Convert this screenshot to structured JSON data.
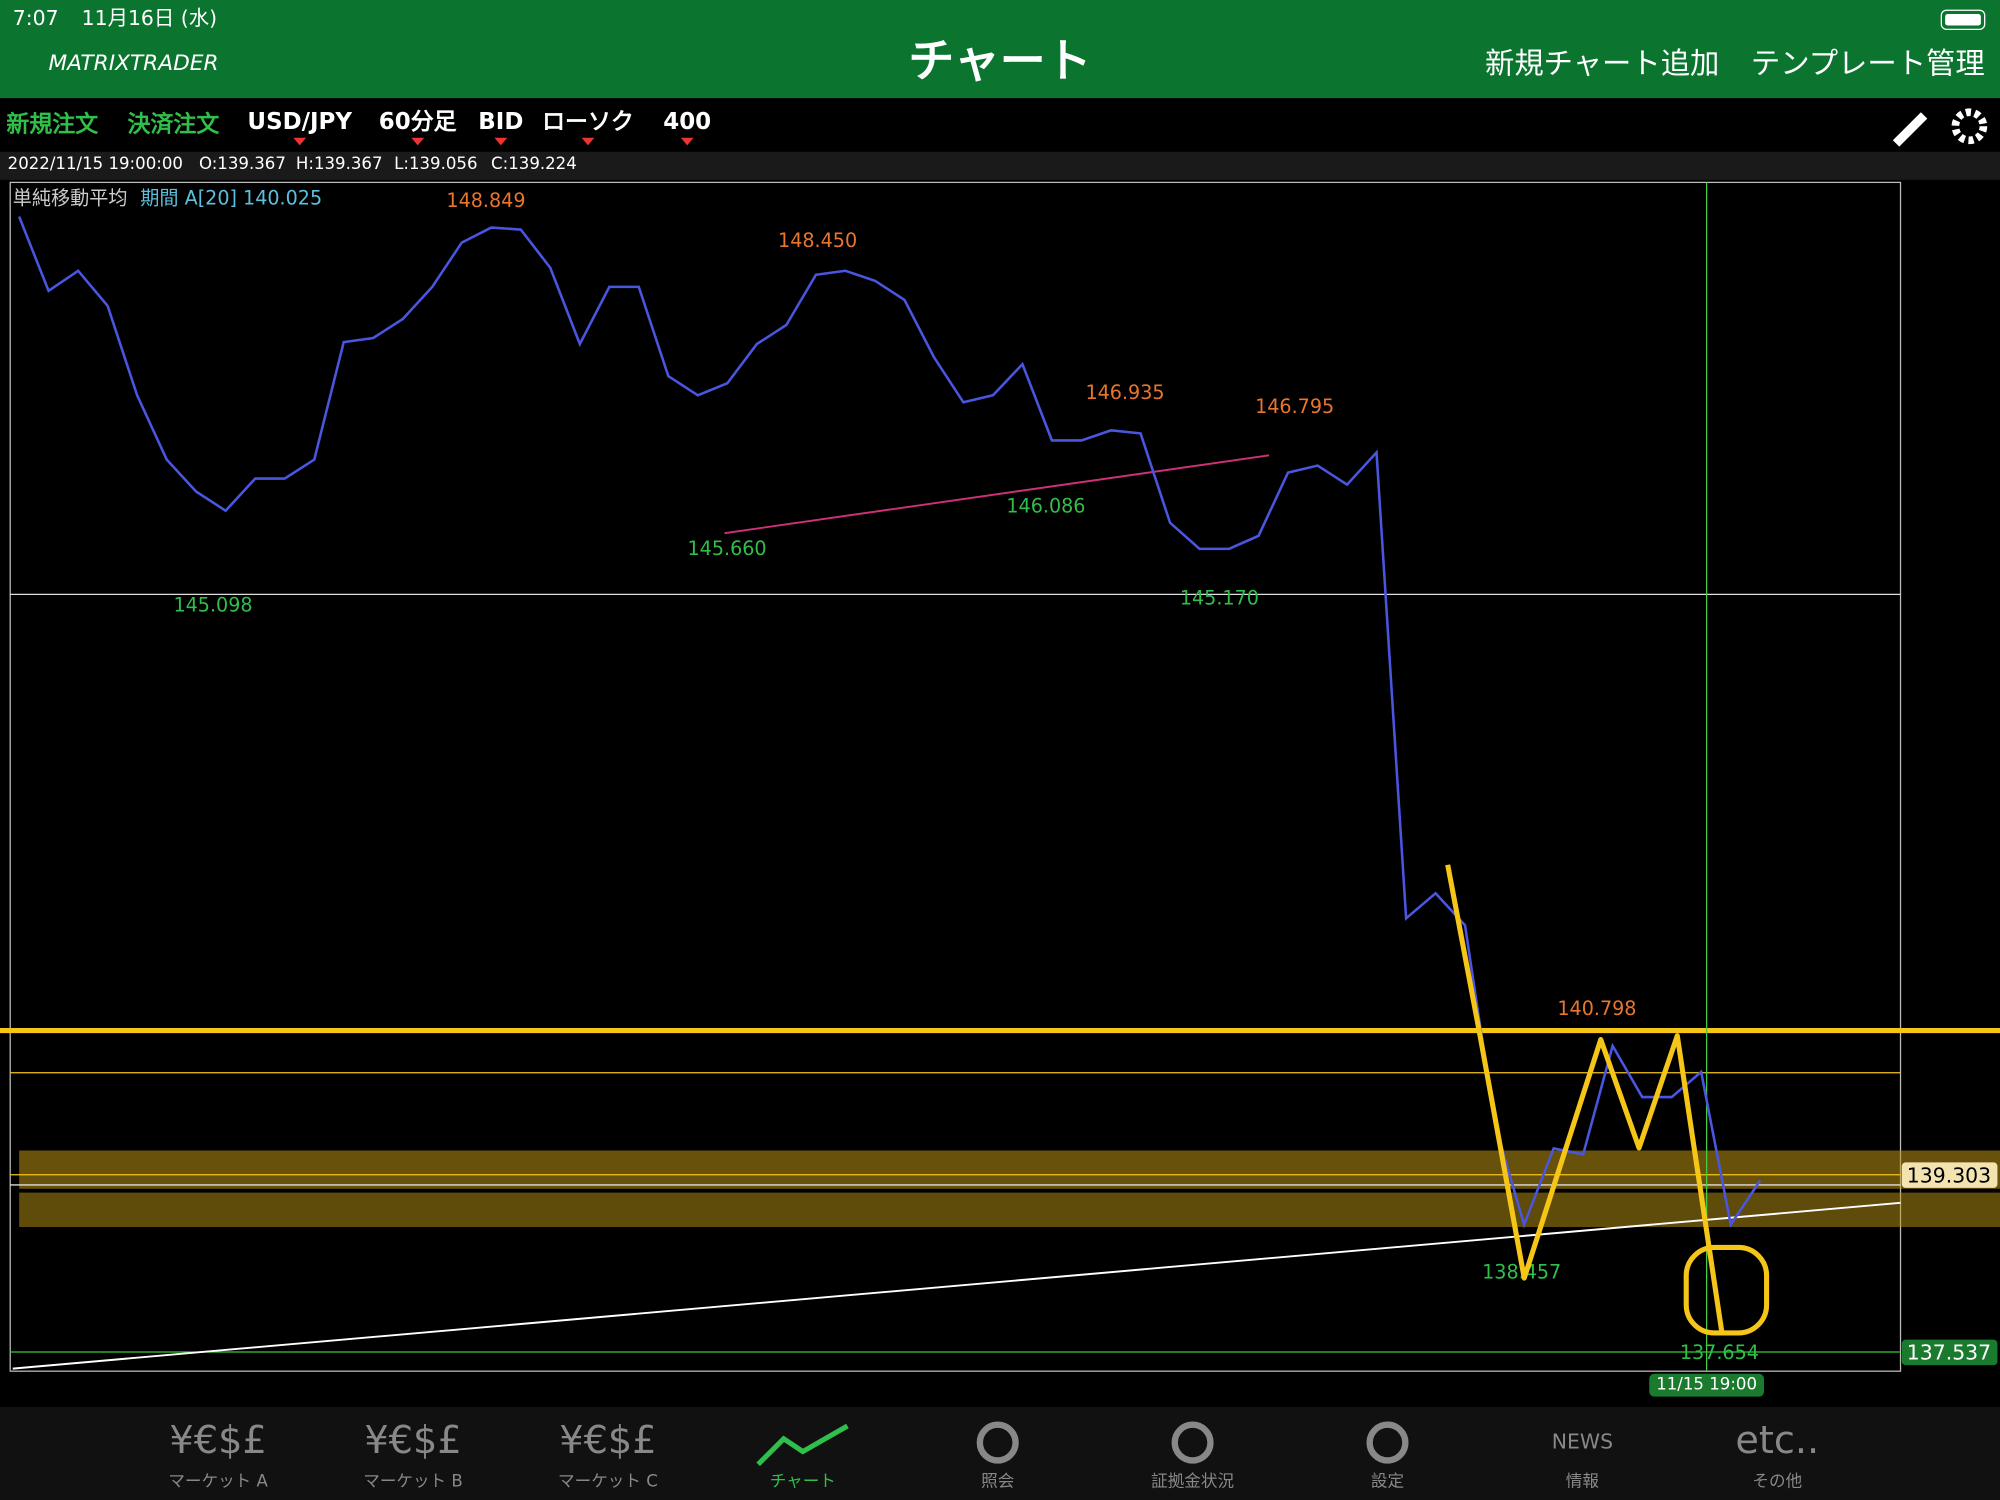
{
  "status": {
    "time": "7:07",
    "date": "11月16日 (水)"
  },
  "header": {
    "logo": "MATRIXTRADER",
    "title": "チャート",
    "actions": [
      "新規チャート追加",
      "テンプレート管理"
    ]
  },
  "toolbar": {
    "orders": [
      "新規注文",
      "決済注文"
    ],
    "selectors": [
      "USD/JPY",
      "60分足",
      "BID",
      "ローソク",
      "400"
    ]
  },
  "ohlc": {
    "datetime": "2022/11/15 19:00:00",
    "open": "O:139.367",
    "high": "H:139.367",
    "low": "L:139.056",
    "close": "C:139.224"
  },
  "indicator": {
    "name": "単純移動平均",
    "params": "期間 A[20] 140.025"
  },
  "chart_data": {
    "type": "line",
    "series": [
      {
        "name": "USD/JPY",
        "color": "#4a56e0",
        "values": [
          148.85,
          148.11,
          148.31,
          147.96,
          147.07,
          146.43,
          146.11,
          145.92,
          146.24,
          146.24,
          146.43,
          147.6,
          147.64,
          147.83,
          148.15,
          148.59,
          148.74,
          148.72,
          148.34,
          147.58,
          148.15,
          148.15,
          147.26,
          147.07,
          147.19,
          147.58,
          147.77,
          148.27,
          148.31,
          148.21,
          148.02,
          147.45,
          147.0,
          147.07,
          147.38,
          146.62,
          146.62,
          146.72,
          146.69,
          145.8,
          145.54,
          145.54,
          145.67,
          146.3,
          146.37,
          146.18,
          146.5,
          141.86,
          142.11,
          141.79,
          139.82,
          138.81,
          139.57,
          139.51,
          140.59,
          140.08,
          140.08,
          140.33,
          138.81,
          139.25
        ]
      }
    ],
    "ylim": [
      137.35,
      149.19
    ],
    "highs": [
      148.849,
      {
        "value": 148.45,
        "label": "148.450"
      },
      146.935,
      146.795,
      140.798
    ],
    "lows": [
      145.098,
      {
        "value": 145.66,
        "label": "145.660"
      },
      146.086,
      {
        "value": 145.17,
        "label": "145.170"
      },
      138.457,
      137.654
    ],
    "price_tags": [
      139.303,
      137.537
    ],
    "crosshair_time": "11/15 19:00"
  },
  "nav": [
    {
      "icon": "¥€$£",
      "label": "マーケット A"
    },
    {
      "icon": "¥€$£",
      "label": "マーケット B"
    },
    {
      "icon": "¥€$£",
      "label": "マーケット C"
    },
    {
      "label": "チャート"
    },
    {
      "label": "照会"
    },
    {
      "label": "証拠金状況"
    },
    {
      "label": "設定"
    },
    {
      "icon": "NEWS",
      "label": "情報"
    },
    {
      "icon": "etc..",
      "label": "その他"
    }
  ]
}
